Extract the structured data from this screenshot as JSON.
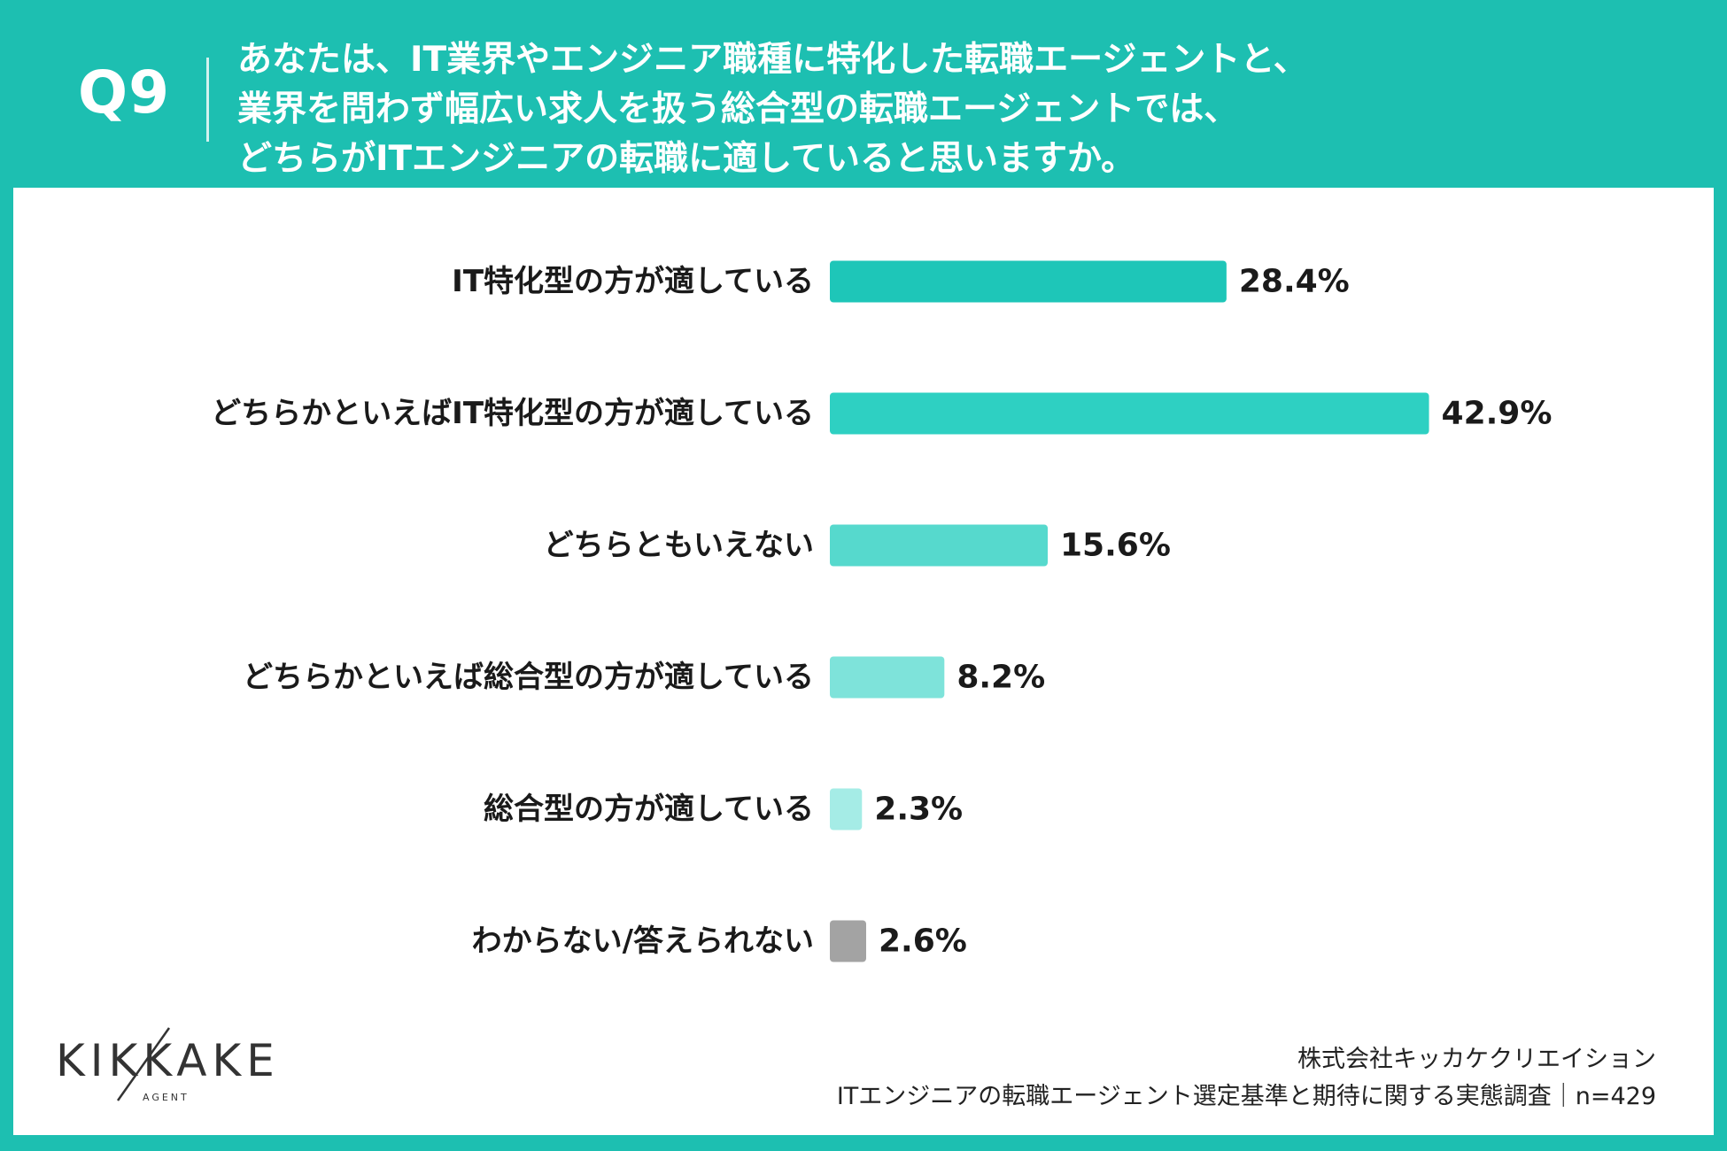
{
  "header": {
    "q_number": "Q9",
    "question_lines": [
      "あなたは、IT業界やエンジニア職種に特化した転職エージェントと、",
      "業界を問わず幅広い求人を扱う総合型の転職エージェントでは、",
      "どちらがITエンジニアの転職に適していると思いますか。"
    ]
  },
  "chart_data": {
    "type": "bar",
    "orientation": "horizontal",
    "categories": [
      "IT特化型の方が適している",
      "どちらかといえばIT特化型の方が適している",
      "どちらともいえない",
      "どちらかといえば総合型の方が適している",
      "総合型の方が適している",
      "わからない/答えられない"
    ],
    "values": [
      28.4,
      42.9,
      15.6,
      8.2,
      2.3,
      2.6
    ],
    "value_labels": [
      "28.4%",
      "42.9%",
      "15.6%",
      "8.2%",
      "2.3%",
      "2.6%"
    ],
    "colors": [
      "#1ec6b8",
      "#2ed0c2",
      "#56d9cd",
      "#7ee3da",
      "#a5ece6",
      "#a3a3a3"
    ],
    "unit": "%",
    "grid": false,
    "legend": "none"
  },
  "footer": {
    "company": "株式会社キッカケクリエイション",
    "survey": "ITエンジニアの転職エージェント選定基準と期待に関する実態調査｜n=429"
  },
  "logo": {
    "name": "KIKKAKE",
    "sub": "AGENT"
  },
  "colors": {
    "brand_teal": "#1dbfb1",
    "panel": "#ffffff",
    "text": "#1a1a1a"
  }
}
